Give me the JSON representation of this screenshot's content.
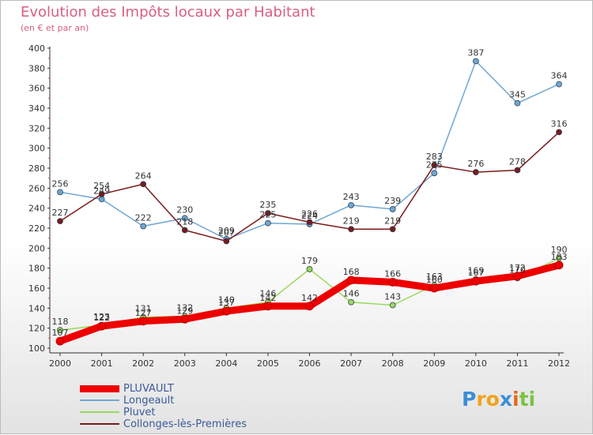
{
  "title": "Evolution des Impôts locaux par Habitant",
  "subtitle": "(en € et par an)",
  "logo": {
    "letters": [
      {
        "ch": "P",
        "color": "#3b8fd4"
      },
      {
        "ch": "r",
        "color": "#f0a31c"
      },
      {
        "ch": "o",
        "color": "#f0a31c"
      },
      {
        "ch": "x",
        "color": "#3b8fd4"
      },
      {
        "ch": "i",
        "color": "#e86a1e"
      },
      {
        "ch": "t",
        "color": "#7cc242"
      },
      {
        "ch": "i",
        "color": "#7cc242"
      }
    ]
  },
  "chart_data": {
    "type": "line",
    "x": [
      2000,
      2001,
      2002,
      2003,
      2004,
      2005,
      2006,
      2007,
      2008,
      2009,
      2010,
      2011,
      2012
    ],
    "ylim": [
      100,
      400
    ],
    "yticks": [
      100,
      120,
      140,
      160,
      180,
      200,
      220,
      240,
      260,
      280,
      300,
      320,
      340,
      360,
      380,
      400
    ],
    "grid": false,
    "legend_position": "bottom-left",
    "series": [
      {
        "name": "PLUVAULT",
        "color": "#ee0000",
        "width": 9,
        "values": [
          107,
          122,
          127,
          129,
          137,
          142,
          142,
          168,
          166,
          160,
          167,
          172,
          183
        ]
      },
      {
        "name": "Longeault",
        "color": "#6fa6d2",
        "width": 1.5,
        "values": [
          256,
          249,
          222,
          230,
          209,
          225,
          224,
          243,
          239,
          275,
          387,
          345,
          364
        ]
      },
      {
        "name": "Pluvet",
        "color": "#9ad95c",
        "width": 1.5,
        "values": [
          118,
          123,
          131,
          132,
          140,
          146,
          179,
          146,
          143,
          163,
          169,
          170,
          190
        ]
      },
      {
        "name": "Collonges-lès-Premières",
        "color": "#7a1a1a",
        "width": 1.5,
        "values": [
          227,
          254,
          264,
          218,
          207,
          235,
          226,
          219,
          219,
          283,
          276,
          278,
          316
        ]
      }
    ]
  }
}
